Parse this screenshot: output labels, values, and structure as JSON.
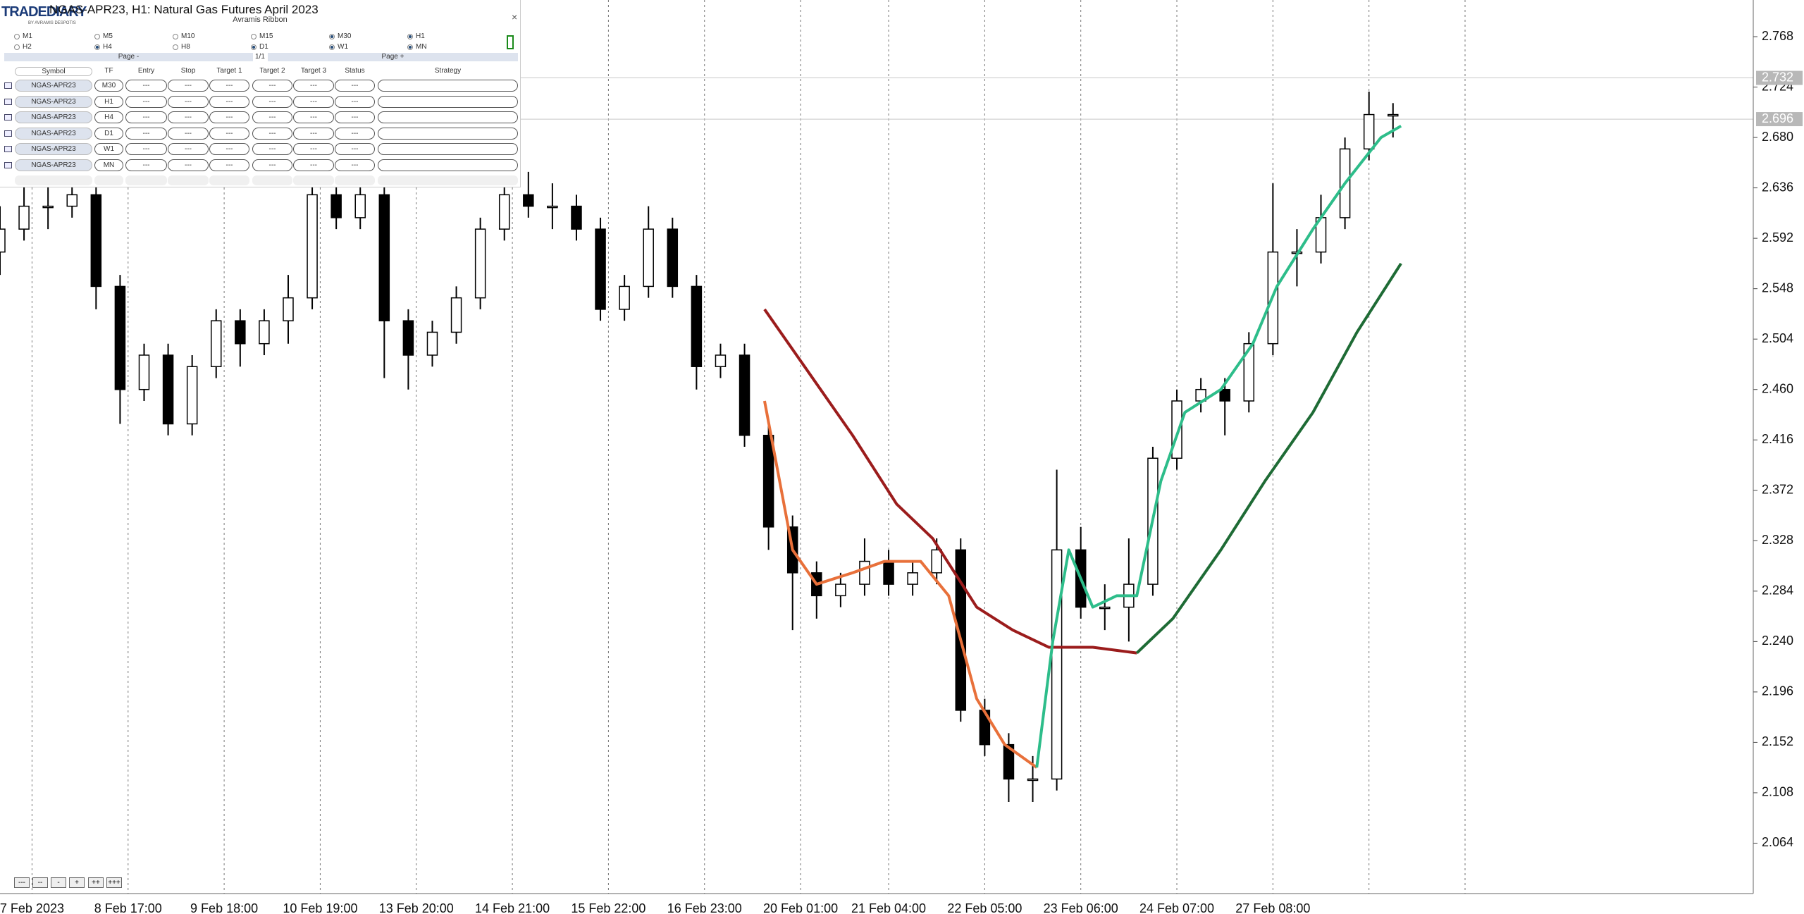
{
  "chart_data": {
    "type": "candlestick",
    "title": "NGAS-APR23, H1:  Natural Gas Futures April 2023",
    "x": [
      0,
      6,
      12,
      18,
      24,
      30,
      36,
      42,
      48,
      54,
      60,
      66,
      72,
      78,
      84,
      90,
      96,
      102,
      108,
      114,
      120,
      126,
      132,
      138,
      144,
      150,
      156,
      162,
      168,
      174,
      180,
      186,
      192,
      198,
      204,
      210,
      216,
      222,
      228,
      234,
      240,
      246,
      252,
      258,
      264,
      270,
      276,
      282,
      288,
      294,
      300,
      306,
      312,
      318,
      324,
      330,
      336,
      342,
      348
    ],
    "candles": [
      [
        2.58,
        2.62,
        2.56,
        2.6
      ],
      [
        2.6,
        2.64,
        2.59,
        2.62
      ],
      [
        2.62,
        2.64,
        2.6,
        2.62
      ],
      [
        2.62,
        2.65,
        2.61,
        2.63
      ],
      [
        2.63,
        2.64,
        2.53,
        2.55
      ],
      [
        2.55,
        2.56,
        2.43,
        2.46
      ],
      [
        2.46,
        2.5,
        2.45,
        2.49
      ],
      [
        2.49,
        2.5,
        2.42,
        2.43
      ],
      [
        2.43,
        2.49,
        2.42,
        2.48
      ],
      [
        2.48,
        2.53,
        2.47,
        2.52
      ],
      [
        2.52,
        2.53,
        2.48,
        2.5
      ],
      [
        2.5,
        2.53,
        2.49,
        2.52
      ],
      [
        2.52,
        2.56,
        2.5,
        2.54
      ],
      [
        2.54,
        2.64,
        2.53,
        2.63
      ],
      [
        2.63,
        2.64,
        2.6,
        2.61
      ],
      [
        2.61,
        2.65,
        2.6,
        2.63
      ],
      [
        2.63,
        2.64,
        2.47,
        2.52
      ],
      [
        2.52,
        2.53,
        2.46,
        2.49
      ],
      [
        2.49,
        2.52,
        2.48,
        2.51
      ],
      [
        2.51,
        2.55,
        2.5,
        2.54
      ],
      [
        2.54,
        2.61,
        2.53,
        2.6
      ],
      [
        2.6,
        2.64,
        2.59,
        2.63
      ],
      [
        2.63,
        2.65,
        2.61,
        2.62
      ],
      [
        2.62,
        2.64,
        2.6,
        2.62
      ],
      [
        2.62,
        2.63,
        2.59,
        2.6
      ],
      [
        2.6,
        2.61,
        2.52,
        2.53
      ],
      [
        2.53,
        2.56,
        2.52,
        2.55
      ],
      [
        2.55,
        2.62,
        2.54,
        2.6
      ],
      [
        2.6,
        2.61,
        2.54,
        2.55
      ],
      [
        2.55,
        2.56,
        2.46,
        2.48
      ],
      [
        2.48,
        2.5,
        2.47,
        2.49
      ],
      [
        2.49,
        2.5,
        2.41,
        2.42
      ],
      [
        2.42,
        2.43,
        2.32,
        2.34
      ],
      [
        2.34,
        2.35,
        2.25,
        2.3
      ],
      [
        2.3,
        2.31,
        2.26,
        2.28
      ],
      [
        2.28,
        2.3,
        2.27,
        2.29
      ],
      [
        2.29,
        2.33,
        2.28,
        2.31
      ],
      [
        2.31,
        2.32,
        2.28,
        2.29
      ],
      [
        2.29,
        2.31,
        2.28,
        2.3
      ],
      [
        2.3,
        2.33,
        2.29,
        2.32
      ],
      [
        2.32,
        2.33,
        2.17,
        2.18
      ],
      [
        2.18,
        2.19,
        2.14,
        2.15
      ],
      [
        2.15,
        2.16,
        2.1,
        2.12
      ],
      [
        2.12,
        2.14,
        2.1,
        2.12
      ],
      [
        2.12,
        2.39,
        2.11,
        2.32
      ],
      [
        2.32,
        2.34,
        2.26,
        2.27
      ],
      [
        2.27,
        2.29,
        2.25,
        2.27
      ],
      [
        2.27,
        2.33,
        2.24,
        2.29
      ],
      [
        2.29,
        2.41,
        2.28,
        2.4
      ],
      [
        2.4,
        2.46,
        2.39,
        2.45
      ],
      [
        2.45,
        2.47,
        2.44,
        2.46
      ],
      [
        2.46,
        2.47,
        2.42,
        2.45
      ],
      [
        2.45,
        2.51,
        2.44,
        2.5
      ],
      [
        2.5,
        2.64,
        2.49,
        2.58
      ],
      [
        2.58,
        2.6,
        2.55,
        2.58
      ],
      [
        2.58,
        2.63,
        2.57,
        2.61
      ],
      [
        2.61,
        2.68,
        2.6,
        2.67
      ],
      [
        2.67,
        2.72,
        2.66,
        2.7
      ],
      [
        2.7,
        2.71,
        2.68,
        2.7
      ]
    ],
    "up_color": "#ffffff",
    "down_color": "#000000",
    "wick_color": "#000000",
    "series": [
      {
        "color": "#9b1c1c",
        "x": [
          191,
          201,
          213,
          224,
          233,
          244,
          253,
          262,
          273,
          284
        ],
        "values": [
          2.53,
          2.48,
          2.42,
          2.36,
          2.33,
          2.27,
          2.25,
          2.235,
          2.235,
          2.23
        ]
      },
      {
        "color": "#e8703a",
        "x": [
          191,
          198,
          204,
          213,
          221,
          230,
          237,
          244,
          251,
          259
        ],
        "values": [
          2.45,
          2.32,
          2.29,
          2.3,
          2.31,
          2.31,
          2.28,
          2.19,
          2.15,
          2.13
        ]
      },
      {
        "color": "#1e6b35",
        "x": [
          284,
          293,
          305,
          316,
          328,
          339,
          350
        ],
        "values": [
          2.23,
          2.26,
          2.32,
          2.38,
          2.44,
          2.51,
          2.57
        ]
      },
      {
        "color": "#2dbd8a",
        "x": [
          259,
          263,
          267,
          273,
          279,
          284,
          290,
          296,
          305,
          313,
          319,
          328,
          336,
          345,
          350
        ],
        "values": [
          2.13,
          2.24,
          2.32,
          2.27,
          2.28,
          2.28,
          2.38,
          2.44,
          2.46,
          2.5,
          2.55,
          2.6,
          2.64,
          2.68,
          2.69
        ]
      }
    ],
    "xlim": [
      0,
      438
    ],
    "xticks": [
      {
        "value": 8,
        "label": "7 Feb 2023"
      },
      {
        "value": 32,
        "label": "8 Feb 17:00"
      },
      {
        "value": 56,
        "label": "9 Feb 18:00"
      },
      {
        "value": 80,
        "label": "10 Feb 19:00"
      },
      {
        "value": 104,
        "label": "13 Feb 20:00"
      },
      {
        "value": 128,
        "label": "14 Feb 21:00"
      },
      {
        "value": 152,
        "label": "15 Feb 22:00"
      },
      {
        "value": 176,
        "label": "16 Feb 23:00"
      },
      {
        "value": 200,
        "label": "20 Feb 01:00"
      },
      {
        "value": 222,
        "label": "21 Feb 04:00"
      },
      {
        "value": 246,
        "label": "22 Feb 05:00"
      },
      {
        "value": 270,
        "label": "23 Feb 06:00"
      },
      {
        "value": 294,
        "label": "24 Feb 07:00"
      },
      {
        "value": 318,
        "label": "27 Feb 08:00"
      }
    ],
    "xgrid": [
      342,
      366
    ],
    "ylim": [
      2.02,
      2.8
    ],
    "yticks": [
      2.064,
      2.108,
      2.152,
      2.196,
      {
        "value": 2.24,
        "label": "2.240"
      },
      2.284,
      2.328,
      2.372,
      2.416,
      {
        "value": 2.46,
        "label": "2.460"
      },
      2.504,
      2.548,
      2.592,
      2.636,
      {
        "value": 2.68,
        "label": "2.680"
      },
      2.724,
      2.768
    ],
    "price_lines": [
      2.732,
      2.696
    ]
  },
  "panel": {
    "title": "Avramis Ribbon",
    "close": "×",
    "logo": "TRADEDIARY",
    "logo_sub": "BY AVRAMIS DESPOTIS",
    "timeframes": [
      {
        "label": "M1",
        "checked": false
      },
      {
        "label": "M5",
        "checked": false
      },
      {
        "label": "M10",
        "checked": false
      },
      {
        "label": "M15",
        "checked": false
      },
      {
        "label": "M30",
        "checked": true
      },
      {
        "label": "H1",
        "checked": true
      },
      {
        "label": "H2",
        "checked": false
      },
      {
        "label": "H4",
        "checked": true
      },
      {
        "label": "H8",
        "checked": false
      },
      {
        "label": "D1",
        "checked": true
      },
      {
        "label": "W1",
        "checked": true
      },
      {
        "label": "MN",
        "checked": true
      }
    ],
    "page_prev": "Page -",
    "page_info": "1/1",
    "page_next": "Page +",
    "columns": [
      "Symbol",
      "TF",
      "Entry",
      "Stop",
      "Target 1",
      "Target 2",
      "Target 3",
      "Status",
      "Strategy"
    ],
    "rows": [
      [
        "NGAS-APR23",
        "M30",
        "---",
        "---",
        "---",
        "---",
        "---",
        "---"
      ],
      [
        "NGAS-APR23",
        "H1",
        "---",
        "---",
        "---",
        "---",
        "---",
        "---"
      ],
      [
        "NGAS-APR23",
        "H4",
        "---",
        "---",
        "---",
        "---",
        "---",
        "---"
      ],
      [
        "NGAS-APR23",
        "D1",
        "---",
        "---",
        "---",
        "---",
        "---",
        "---"
      ],
      [
        "NGAS-APR23",
        "W1",
        "---",
        "---",
        "---",
        "---",
        "---",
        "---"
      ],
      [
        "NGAS-APR23",
        "MN",
        "---",
        "---",
        "---",
        "---",
        "---",
        "---"
      ]
    ]
  },
  "zoom_buttons": [
    "---",
    "--",
    "-",
    "+",
    "++",
    "+++"
  ]
}
